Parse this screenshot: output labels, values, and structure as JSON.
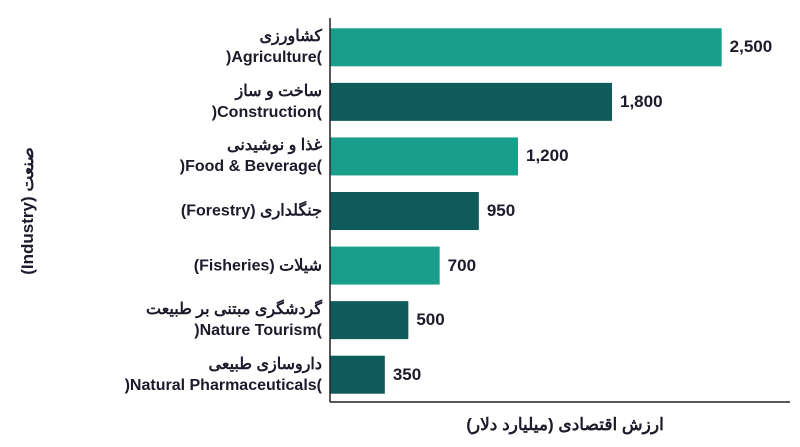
{
  "chart_data": {
    "type": "bar",
    "orientation": "horizontal",
    "y_label": "صنعت (Industry)",
    "x_label": "ارزش اقتصادی (میلیارد دلار)",
    "categories": [
      "کشاورزی\n(Agriculture)",
      "ساخت و ساز\n(Construction)",
      "غذا و نوشیدنی\n(Food & Beverage)",
      "جنگلداری (Forestry)",
      "شیلات (Fisheries)",
      "گردشگری مبتنی بر طبیعت\n(Nature Tourism)",
      "داروسازی طبیعی\n(Natural Pharmaceuticals)"
    ],
    "values": [
      2500,
      1800,
      1200,
      950,
      700,
      500,
      350
    ],
    "value_labels": [
      "2,500",
      "1,800",
      "1,200",
      "950",
      "700",
      "500",
      "350"
    ],
    "colors": [
      "#1a9e8c",
      "#0f5b5c",
      "#1a9e8c",
      "#0f5b5c",
      "#1a9e8c",
      "#0f5b5c",
      "#0f5b5c"
    ],
    "xlim": [
      0,
      3000
    ]
  }
}
